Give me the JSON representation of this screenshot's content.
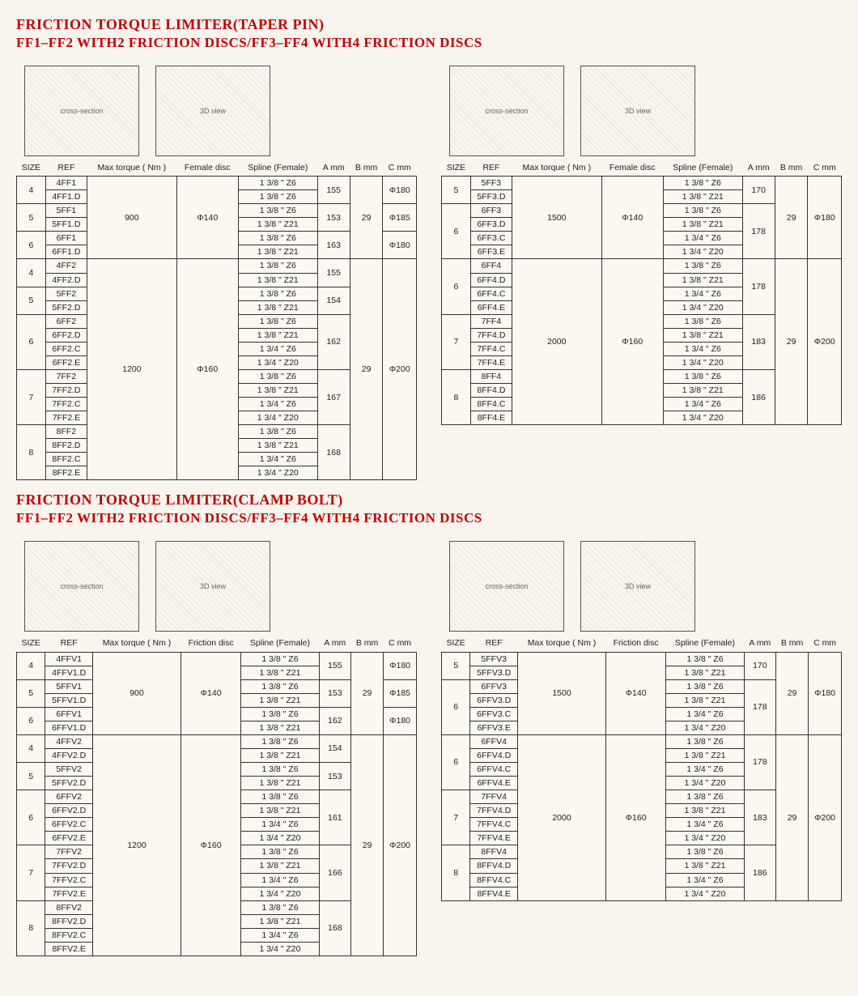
{
  "section1": {
    "title": "FRICTION TORQUE LIMITER(TAPER PIN)",
    "subtitle": "FF1–FF2 WITH2 FRICTION DISCS/FF3–FF4 WITH4 FRICTION DISCS",
    "headers_left": [
      "SIZE",
      "REF",
      "Max torque ( Nm )",
      "Female disc",
      "Spline (Female)",
      "A mm",
      "B mm",
      "C mm"
    ],
    "headers_right": [
      "SIZE",
      "REF",
      "Max torque ( Nm )",
      "Female disc",
      "Spline (Female)",
      "A mm",
      "B mm",
      "C mm"
    ],
    "left_rows": [
      {
        "size": "4",
        "size_rs": 2,
        "ref": "4FF1",
        "torque": "900",
        "torque_rs": 6,
        "disc": "Φ140",
        "disc_rs": 6,
        "spline": "1 3/8 \" Z6",
        "a": "155",
        "a_rs": 2,
        "b": "29",
        "b_rs": 6,
        "c": "Φ180",
        "c_rs": 2
      },
      {
        "ref": "4FF1.D",
        "spline": "1 3/8 \" Z6"
      },
      {
        "size": "5",
        "size_rs": 2,
        "ref": "5FF1",
        "spline": "1 3/8 \" Z6",
        "a": "153",
        "a_rs": 2,
        "c": "Φ185",
        "c_rs": 2
      },
      {
        "ref": "5FF1.D",
        "spline": "1 3/8 \" Z21"
      },
      {
        "size": "6",
        "size_rs": 2,
        "ref": "6FF1",
        "spline": "1 3/8 \" Z6",
        "a": "163",
        "a_rs": 2,
        "c": "Φ180",
        "c_rs": 2
      },
      {
        "ref": "6FF1.D",
        "spline": "1 3/8 \" Z21"
      },
      {
        "size": "4",
        "size_rs": 2,
        "ref": "4FF2",
        "torque": "1200",
        "torque_rs": 16,
        "disc": "Φ160",
        "disc_rs": 16,
        "spline": "1 3/8 \" Z6",
        "a": "155",
        "a_rs": 2,
        "b": "29",
        "b_rs": 16,
        "c": "Φ200",
        "c_rs": 16
      },
      {
        "ref": "4FF2.D",
        "spline": "1 3/8 \" Z21"
      },
      {
        "size": "5",
        "size_rs": 2,
        "ref": "5FF2",
        "spline": "1 3/8 \" Z6",
        "a": "154",
        "a_rs": 2
      },
      {
        "ref": "5FF2.D",
        "spline": "1 3/8 \" Z21"
      },
      {
        "size": "6",
        "size_rs": 4,
        "ref": "6FF2",
        "spline": "1 3/8 \" Z6",
        "a": "162",
        "a_rs": 4
      },
      {
        "ref": "6FF2.D",
        "spline": "1 3/8 \" Z21"
      },
      {
        "ref": "6FF2.C",
        "spline": "1 3/4 \" Z6"
      },
      {
        "ref": "6FF2.E",
        "spline": "1 3/4 \" Z20"
      },
      {
        "size": "7",
        "size_rs": 4,
        "ref": "7FF2",
        "spline": "1 3/8 \" Z6",
        "a": "167",
        "a_rs": 4
      },
      {
        "ref": "7FF2.D",
        "spline": "1 3/8 \" Z21"
      },
      {
        "ref": "7FF2.C",
        "spline": "1 3/4 \" Z6"
      },
      {
        "ref": "7FF2.E",
        "spline": "1 3/4 \" Z20"
      },
      {
        "size": "8",
        "size_rs": 4,
        "ref": "8FF2",
        "spline": "1 3/8 \" Z6",
        "a": "168",
        "a_rs": 4
      },
      {
        "ref": "8FF2.D",
        "spline": "1 3/8 \" Z21"
      },
      {
        "ref": "8FF2.C",
        "spline": "1 3/4 \" Z6"
      },
      {
        "ref": "8FF2.E",
        "spline": "1 3/4 \" Z20"
      }
    ],
    "right_rows": [
      {
        "size": "5",
        "size_rs": 2,
        "ref": "5FF3",
        "torque": "1500",
        "torque_rs": 6,
        "disc": "Φ140",
        "disc_rs": 6,
        "spline": "1 3/8 \" Z6",
        "a": "170",
        "a_rs": 2,
        "b": "29",
        "b_rs": 6,
        "c": "Φ180",
        "c_rs": 6
      },
      {
        "ref": "5FF3.D",
        "spline": "1 3/8 \" Z21"
      },
      {
        "size": "6",
        "size_rs": 4,
        "ref": "6FF3",
        "spline": "1 3/8 \" Z6",
        "a": "178",
        "a_rs": 4
      },
      {
        "ref": "6FF3.D",
        "spline": "1 3/8 \" Z21"
      },
      {
        "ref": "6FF3.C",
        "spline": "1 3/4 \" Z6"
      },
      {
        "ref": "6FF3.E",
        "spline": "1 3/4 \" Z20"
      },
      {
        "size": "6",
        "size_rs": 4,
        "ref": "6FF4",
        "torque": "2000",
        "torque_rs": 12,
        "disc": "Φ160",
        "disc_rs": 12,
        "spline": "1 3/8 \" Z6",
        "a": "178",
        "a_rs": 4,
        "b": "29",
        "b_rs": 12,
        "c": "Φ200",
        "c_rs": 12
      },
      {
        "ref": "6FF4.D",
        "spline": "1 3/8 \" Z21"
      },
      {
        "ref": "6FF4.C",
        "spline": "1 3/4 \" Z6"
      },
      {
        "ref": "6FF4.E",
        "spline": "1 3/4 \" Z20"
      },
      {
        "size": "7",
        "size_rs": 4,
        "ref": "7FF4",
        "spline": "1 3/8 \" Z6",
        "a": "183",
        "a_rs": 4
      },
      {
        "ref": "7FF4.D",
        "spline": "1 3/8 \" Z21"
      },
      {
        "ref": "7FF4.C",
        "spline": "1 3/4 \" Z6"
      },
      {
        "ref": "7FF4.E",
        "spline": "1 3/4 \" Z20"
      },
      {
        "size": "8",
        "size_rs": 4,
        "ref": "8FF4",
        "spline": "1 3/8 \" Z6",
        "a": "186",
        "a_rs": 4
      },
      {
        "ref": "8FF4.D",
        "spline": "1 3/8 \" Z21"
      },
      {
        "ref": "8FF4.C",
        "spline": "1 3/4 \" Z6"
      },
      {
        "ref": "8FF4.E",
        "spline": "1 3/4 \" Z20"
      }
    ]
  },
  "section2": {
    "title": "FRICTION TORQUE LIMITER(CLAMP BOLT)",
    "subtitle": "FF1–FF2 WITH2 FRICTION DISCS/FF3–FF4 WITH4 FRICTION DISCS",
    "headers_left": [
      "SIZE",
      "REF",
      "Max torque ( Nm )",
      "Friction disc",
      "Spline (Female)",
      "A mm",
      "B mm",
      "C mm"
    ],
    "headers_right": [
      "SIZE",
      "REF",
      "Max torque ( Nm )",
      "Friction disc",
      "Spline (Female)",
      "A mm",
      "B mm",
      "C mm"
    ],
    "left_rows": [
      {
        "size": "4",
        "size_rs": 2,
        "ref": "4FFV1",
        "torque": "900",
        "torque_rs": 6,
        "disc": "Φ140",
        "disc_rs": 6,
        "spline": "1 3/8 \" Z6",
        "a": "155",
        "a_rs": 2,
        "b": "29",
        "b_rs": 6,
        "c": "Φ180",
        "c_rs": 2
      },
      {
        "ref": "4FFV1.D",
        "spline": "1 3/8 \" Z21"
      },
      {
        "size": "5",
        "size_rs": 2,
        "ref": "5FFV1",
        "spline": "1 3/8 \" Z6",
        "a": "153",
        "a_rs": 2,
        "c": "Φ185",
        "c_rs": 2
      },
      {
        "ref": "5FFV1.D",
        "spline": "1 3/8 \" Z21"
      },
      {
        "size": "6",
        "size_rs": 2,
        "ref": "6FFV1",
        "spline": "1 3/8 \" Z6",
        "a": "162",
        "a_rs": 2,
        "c": "Φ180",
        "c_rs": 2
      },
      {
        "ref": "6FFV1.D",
        "spline": "1 3/8 \" Z21"
      },
      {
        "size": "4",
        "size_rs": 2,
        "ref": "4FFV2",
        "torque": "1200",
        "torque_rs": 16,
        "disc": "Φ160",
        "disc_rs": 16,
        "spline": "1 3/8 \" Z6",
        "a": "154",
        "a_rs": 2,
        "b": "29",
        "b_rs": 16,
        "c": "Φ200",
        "c_rs": 16
      },
      {
        "ref": "4FFV2.D",
        "spline": "1 3/8 \" Z21"
      },
      {
        "size": "5",
        "size_rs": 2,
        "ref": "5FFV2",
        "spline": "1 3/8 \" Z6",
        "a": "153",
        "a_rs": 2
      },
      {
        "ref": "5FFV2.D",
        "spline": "1 3/8 \" Z21"
      },
      {
        "size": "6",
        "size_rs": 4,
        "ref": "6FFV2",
        "spline": "1 3/8 \" Z6",
        "a": "161",
        "a_rs": 4
      },
      {
        "ref": "6FFV2.D",
        "spline": "1 3/8 \" Z21"
      },
      {
        "ref": "6FFV2.C",
        "spline": "1 3/4 \" Z6"
      },
      {
        "ref": "6FFV2.E",
        "spline": "1 3/4 \" Z20"
      },
      {
        "size": "7",
        "size_rs": 4,
        "ref": "7FFV2",
        "spline": "1 3/8 \" Z6",
        "a": "166",
        "a_rs": 4
      },
      {
        "ref": "7FFV2.D",
        "spline": "1 3/8 \" Z21"
      },
      {
        "ref": "7FFV2.C",
        "spline": "1 3/4 \" Z6"
      },
      {
        "ref": "7FFV2.E",
        "spline": "1 3/4 \" Z20"
      },
      {
        "size": "8",
        "size_rs": 4,
        "ref": "8FFV2",
        "spline": "1 3/8 \" Z6",
        "a": "168",
        "a_rs": 4
      },
      {
        "ref": "8FFV2.D",
        "spline": "1 3/8 \" Z21"
      },
      {
        "ref": "8FFV2.C",
        "spline": "1 3/4 \" Z6"
      },
      {
        "ref": "8FFV2.E",
        "spline": "1 3/4 \" Z20"
      }
    ],
    "right_rows": [
      {
        "size": "5",
        "size_rs": 2,
        "ref": "5FFV3",
        "torque": "1500",
        "torque_rs": 6,
        "disc": "Φ140",
        "disc_rs": 6,
        "spline": "1 3/8 \" Z6",
        "a": "170",
        "a_rs": 2,
        "b": "29",
        "b_rs": 6,
        "c": "Φ180",
        "c_rs": 6
      },
      {
        "ref": "5FFV3.D",
        "spline": "1 3/8 \" Z21"
      },
      {
        "size": "6",
        "size_rs": 4,
        "ref": "6FFV3",
        "spline": "1 3/8 \" Z6",
        "a": "178",
        "a_rs": 4
      },
      {
        "ref": "6FFV3.D",
        "spline": "1 3/8 \" Z21"
      },
      {
        "ref": "6FFV3.C",
        "spline": "1 3/4 \" Z6"
      },
      {
        "ref": "6FFV3.E",
        "spline": "1 3/4 \" Z20"
      },
      {
        "size": "6",
        "size_rs": 4,
        "ref": "6FFV4",
        "torque": "2000",
        "torque_rs": 12,
        "disc": "Φ160",
        "disc_rs": 12,
        "spline": "1 3/8 \" Z6",
        "a": "178",
        "a_rs": 4,
        "b": "29",
        "b_rs": 12,
        "c": "Φ200",
        "c_rs": 12
      },
      {
        "ref": "6FFV4.D",
        "spline": "1 3/8 \" Z21"
      },
      {
        "ref": "6FFV4.C",
        "spline": "1 3/4 \" Z6"
      },
      {
        "ref": "6FFV4.E",
        "spline": "1 3/4 \" Z20"
      },
      {
        "size": "7",
        "size_rs": 4,
        "ref": "7FFV4",
        "spline": "1 3/8 \" Z6",
        "a": "183",
        "a_rs": 4
      },
      {
        "ref": "7FFV4.D",
        "spline": "1 3/8 \" Z21"
      },
      {
        "ref": "7FFV4.C",
        "spline": "1 3/4 \" Z6"
      },
      {
        "ref": "7FFV4.E",
        "spline": "1 3/4 \" Z20"
      },
      {
        "size": "8",
        "size_rs": 4,
        "ref": "8FFV4",
        "spline": "1 3/8 \" Z6",
        "a": "186",
        "a_rs": 4
      },
      {
        "ref": "8FFV4.D",
        "spline": "1 3/8 \" Z21"
      },
      {
        "ref": "8FFV4.C",
        "spline": "1 3/4 \" Z6"
      },
      {
        "ref": "8FFV4.E",
        "spline": "1 3/4 \" Z20"
      }
    ]
  },
  "diagram_labels": {
    "cross_section": "cross-section",
    "isometric": "3D view"
  },
  "colors": {
    "title": "#c00000",
    "border": "#333333",
    "background": "#f8f4ee"
  }
}
